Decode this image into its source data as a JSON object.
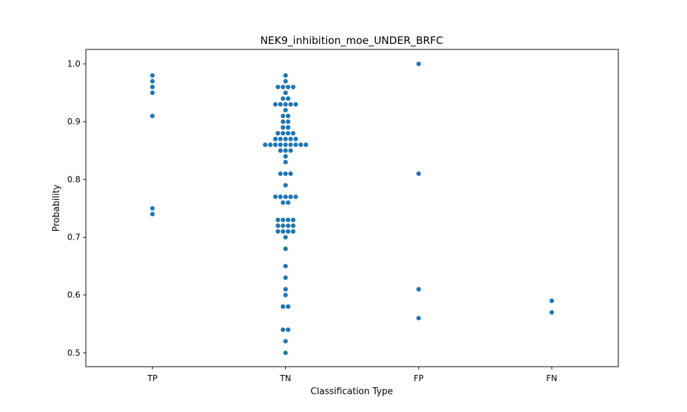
{
  "chart_data": {
    "type": "scatter",
    "subtype": "swarm",
    "title": "NEK9_inhibition_moe_UNDER_BRFC",
    "xlabel": "Classification Type",
    "ylabel": "Probability",
    "categories": [
      "TP",
      "TN",
      "FP",
      "FN"
    ],
    "y_ticks": [
      "0.5",
      "0.6",
      "0.7",
      "0.8",
      "0.9",
      "1.0"
    ],
    "ylim": [
      0.476,
      1.025
    ],
    "grid": false,
    "marker_color": "#1f77b4",
    "points": {
      "TP": [
        0.98,
        0.97,
        0.96,
        0.95,
        0.91,
        0.75,
        0.74
      ],
      "TN": [
        0.98,
        0.97,
        0.96,
        0.96,
        0.96,
        0.96,
        0.95,
        0.94,
        0.94,
        0.93,
        0.93,
        0.93,
        0.93,
        0.93,
        0.92,
        0.91,
        0.91,
        0.9,
        0.9,
        0.89,
        0.89,
        0.88,
        0.88,
        0.88,
        0.88,
        0.87,
        0.87,
        0.87,
        0.87,
        0.87,
        0.86,
        0.86,
        0.86,
        0.86,
        0.86,
        0.86,
        0.86,
        0.86,
        0.86,
        0.85,
        0.85,
        0.85,
        0.84,
        0.83,
        0.81,
        0.81,
        0.81,
        0.79,
        0.77,
        0.77,
        0.77,
        0.77,
        0.77,
        0.76,
        0.76,
        0.73,
        0.73,
        0.73,
        0.73,
        0.72,
        0.72,
        0.72,
        0.72,
        0.71,
        0.71,
        0.71,
        0.71,
        0.7,
        0.68,
        0.65,
        0.63,
        0.61,
        0.6,
        0.58,
        0.58,
        0.54,
        0.54,
        0.52,
        0.5
      ],
      "FP": [
        1.0,
        0.81,
        0.61,
        0.56
      ],
      "FN": [
        0.59,
        0.57
      ]
    }
  }
}
